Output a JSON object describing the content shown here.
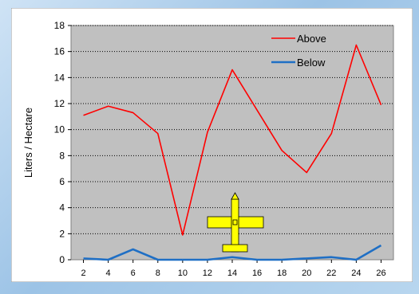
{
  "chart_data": {
    "type": "line",
    "title": "",
    "xlabel": "",
    "ylabel": "Liters / Hectare",
    "x": [
      2,
      4,
      6,
      8,
      10,
      12,
      14,
      16,
      18,
      20,
      22,
      24,
      26
    ],
    "xlim": [
      1,
      27
    ],
    "ylim": [
      0,
      18
    ],
    "yticks": [
      0,
      2,
      4,
      6,
      8,
      10,
      12,
      14,
      16,
      18
    ],
    "grid": "horizontal-dotted",
    "legend_position": "top-right",
    "series": [
      {
        "name": "Above",
        "color": "#ff0000",
        "values": [
          11.1,
          11.8,
          11.3,
          9.7,
          1.9,
          9.8,
          14.6,
          11.5,
          8.4,
          6.7,
          9.7,
          16.5,
          11.9
        ]
      },
      {
        "name": "Below",
        "color": "#1f6fc5",
        "values": [
          0.1,
          0.0,
          0.8,
          0.0,
          0.0,
          0.0,
          0.2,
          0.0,
          0.0,
          0.1,
          0.2,
          0.0,
          1.1
        ]
      }
    ]
  },
  "colors": {
    "plot_background": "#c0c0c0",
    "panel_background": "#ffffff",
    "airplane_fill": "#ffff00"
  },
  "icons": {
    "airplane": "airplane-icon"
  }
}
